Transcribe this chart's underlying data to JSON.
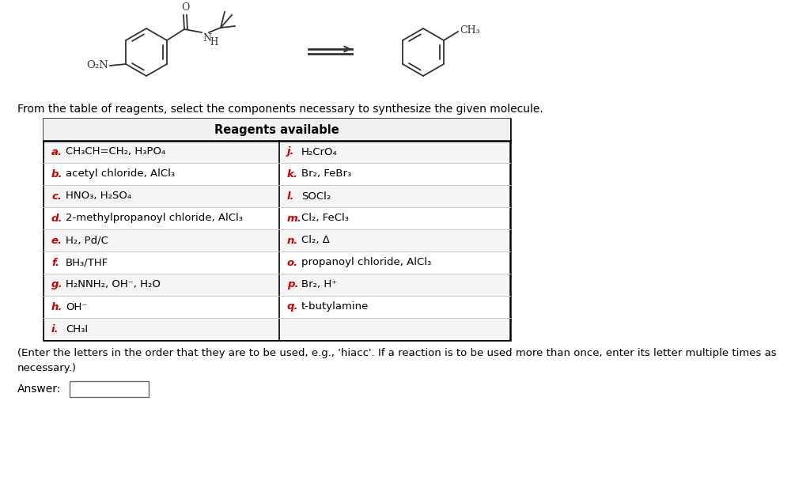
{
  "background_color": "#ffffff",
  "intro_text": "From the table of reagents, select the components necessary to synthesize the given molecule.",
  "table_title": "Reagents available",
  "table_left": [
    [
      "a.",
      "CH₃CH=CH₂, H₃PO₄"
    ],
    [
      "b.",
      "acetyl chloride, AlCl₃"
    ],
    [
      "c.",
      "HNO₃, H₂SO₄"
    ],
    [
      "d.",
      "2-methylpropanoyl chloride, AlCl₃"
    ],
    [
      "e.",
      "H₂, Pd/C"
    ],
    [
      "f.",
      "BH₃/THF"
    ],
    [
      "g.",
      "H₂NNH₂, OH⁻, H₂O"
    ],
    [
      "h.",
      "OH⁻"
    ],
    [
      "i.",
      "CH₃I"
    ]
  ],
  "table_right": [
    [
      "j.",
      "H₂CrO₄"
    ],
    [
      "k.",
      "Br₂, FeBr₃"
    ],
    [
      "l.",
      "SOCl₂"
    ],
    [
      "m.",
      "Cl₂, FeCl₃"
    ],
    [
      "n.",
      "Cl₂, Δ"
    ],
    [
      "o.",
      "propanoyl chloride, AlCl₃"
    ],
    [
      "p.",
      "Br₂, H⁺"
    ],
    [
      "q.",
      "t-butylamine"
    ],
    [
      "",
      ""
    ]
  ],
  "footer_text": "(Enter the letters in the order that they are to be used, e.g., 'hiacc'. If a reaction is to be used more than once, enter its letter multiple times as\nnecessary.)",
  "answer_label": "Answer:",
  "label_color": "#cc0000",
  "text_color": "#000000",
  "font_size": 9.5,
  "table_header_fontsize": 10.5,
  "intro_fontsize": 10,
  "footer_fontsize": 9.5,
  "mol_color": "#333333",
  "mol_lw": 1.3,
  "benzene_r": 30
}
